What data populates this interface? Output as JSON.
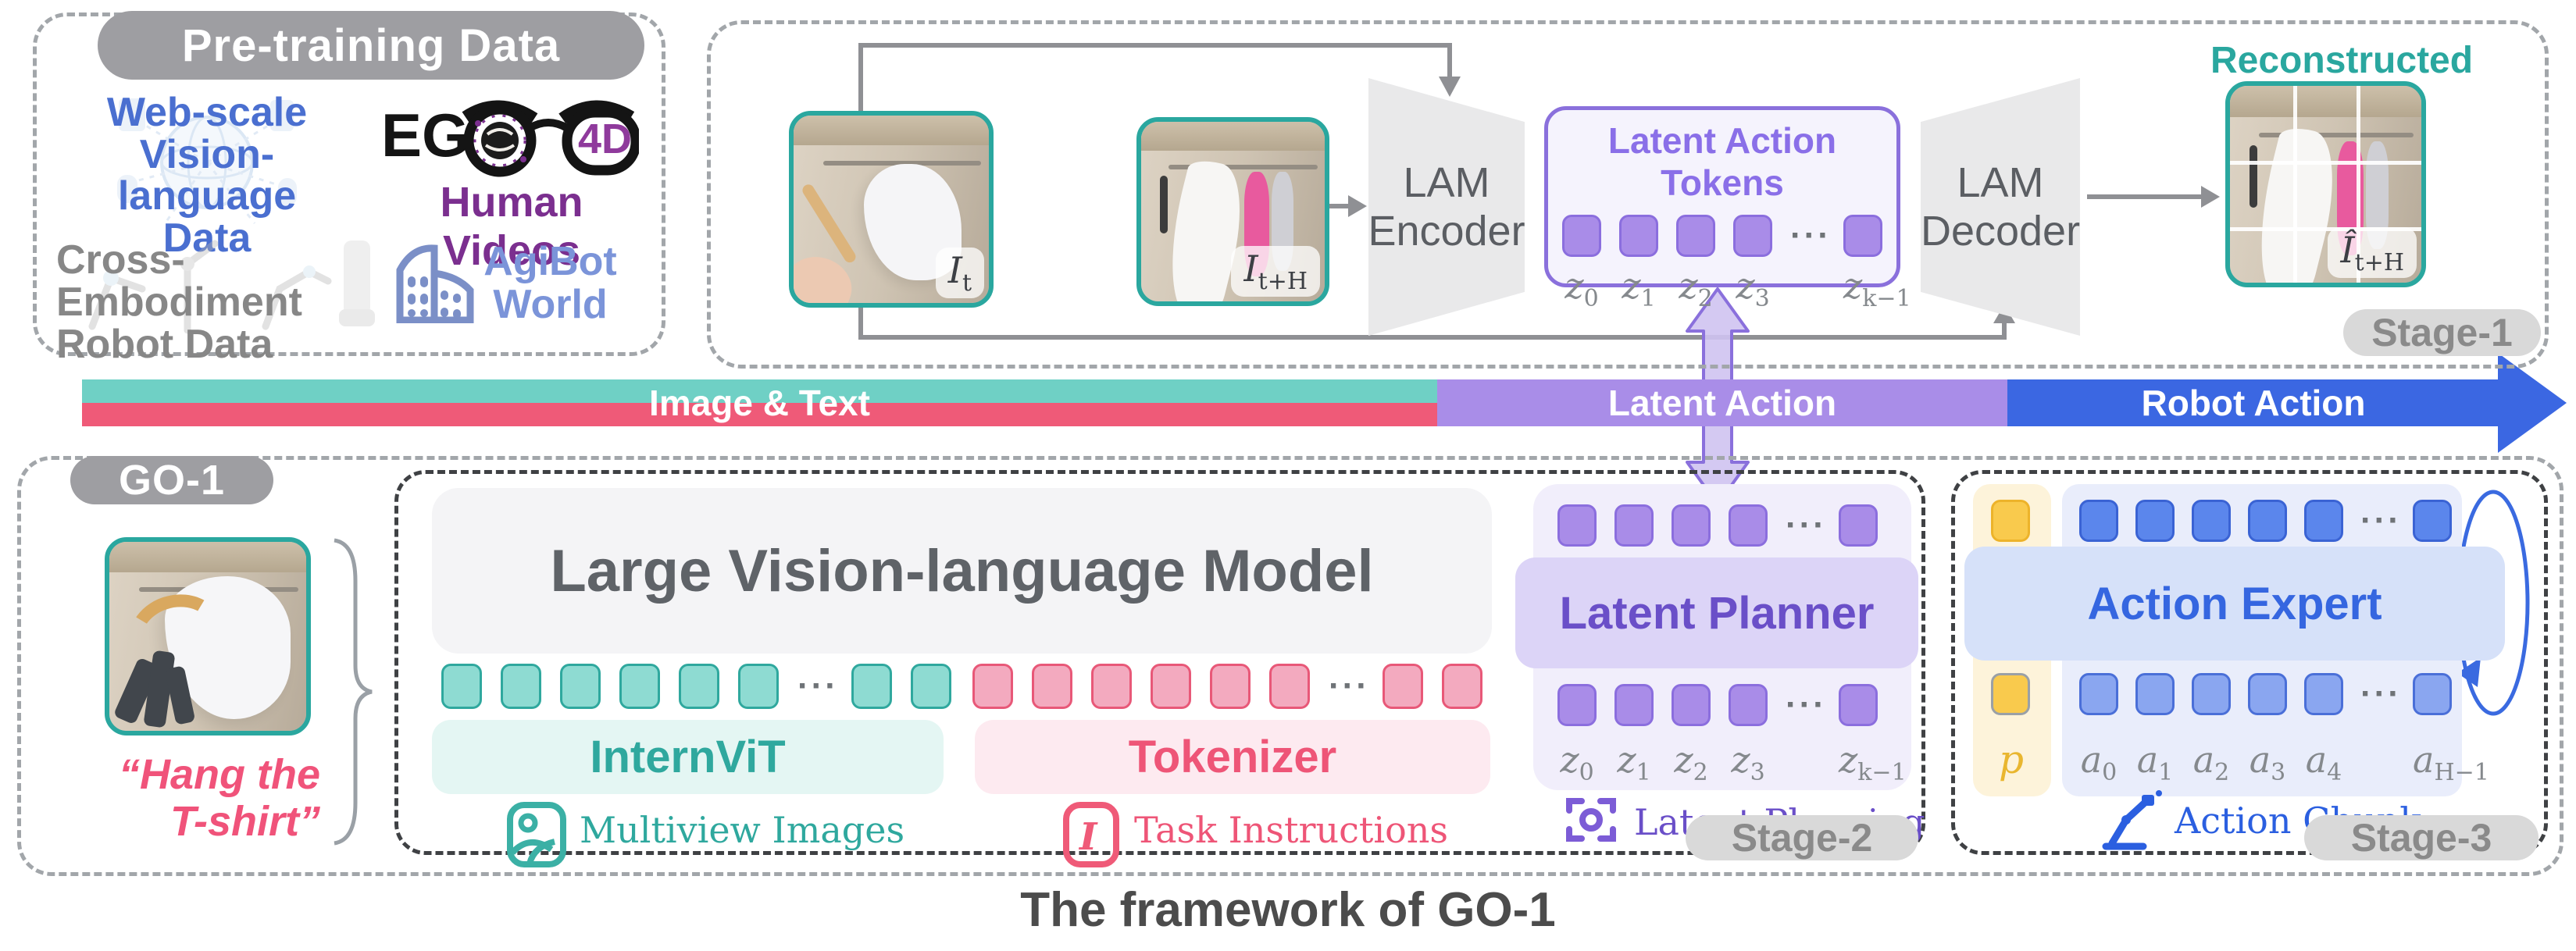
{
  "dots": "···",
  "caption": "The framework of GO-1",
  "pretraining": {
    "title": "Pre-training Data",
    "web_scale": [
      "Web-scale",
      "Vision-language",
      "Data"
    ],
    "ego_text": "EG",
    "ego_4d": "4D",
    "human_videos": "Human Videos",
    "cross_embodiment": [
      "Cross-Embodiment",
      "Robot Data"
    ],
    "agibot": [
      "AgiBot",
      "World"
    ]
  },
  "stage1": {
    "badge": "Stage-1",
    "encoder": [
      "LAM",
      "Encoder"
    ],
    "decoder": [
      "LAM",
      "Decoder"
    ],
    "tokens_title": "Latent Action Tokens",
    "latent_tokens": {
      "before": 4,
      "after": 1
    },
    "z_labels": [
      {
        "b": "z",
        "s": "0"
      },
      {
        "b": "z",
        "s": "1"
      },
      {
        "b": "z",
        "s": "2"
      },
      {
        "b": "z",
        "s": "3"
      },
      {
        "b": "z",
        "s": "k−1"
      }
    ],
    "img_t": {
      "b": "I",
      "s": "t"
    },
    "img_th": {
      "b": "I",
      "s": "t+H"
    },
    "recon_label": "Reconstructed",
    "img_recon": {
      "b": "Î",
      "s": "t+H"
    }
  },
  "bar": {
    "segments": [
      {
        "label": "Image & Text"
      },
      {
        "label": "Latent Action"
      },
      {
        "label": "Robot Action"
      }
    ]
  },
  "go1": {
    "badge": "GO-1",
    "instruction": [
      "“Hang the",
      "T-shirt”"
    ]
  },
  "stage2": {
    "badge": "Stage-2",
    "lvlm": "Large Vision-language Model",
    "internvit": "InternViT",
    "tokenizer": "Tokenizer",
    "multiview": "Multiview Images",
    "task_instructions": "Task Instructions",
    "instruction_icon_glyph": "I",
    "vision_tokens": {
      "before": 6,
      "after": 2
    },
    "text_tokens": {
      "before": 6,
      "after": 2
    },
    "planner": "Latent Planner",
    "planning": "Latent Planning",
    "planner_tokens_top": {
      "before": 4,
      "after": 1
    },
    "planner_tokens_bottom": {
      "before": 4,
      "after": 1
    },
    "z_labels": [
      {
        "b": "z",
        "s": "0"
      },
      {
        "b": "z",
        "s": "1"
      },
      {
        "b": "z",
        "s": "2"
      },
      {
        "b": "z",
        "s": "3"
      },
      {
        "b": "z",
        "s": "k−1"
      }
    ]
  },
  "stage3": {
    "badge": "Stage-3",
    "expert": "Action Expert",
    "chunk": "Action Chunk",
    "p_label": "p",
    "action_tokens_top": {
      "before": 5,
      "after": 1
    },
    "action_tokens_bottom": {
      "before": 5,
      "after": 1
    },
    "a_labels": [
      {
        "b": "a",
        "s": "0"
      },
      {
        "b": "a",
        "s": "1"
      },
      {
        "b": "a",
        "s": "2"
      },
      {
        "b": "a",
        "s": "3"
      },
      {
        "b": "a",
        "s": "4"
      },
      {
        "b": "a",
        "s": "H−1"
      }
    ]
  },
  "colors": {
    "teal": "#2AA79F",
    "teal_token": "#8EDBD2",
    "teal_bg": "#E4F6F3",
    "pink": "#EE5577",
    "pink_token": "#F3AABF",
    "pink_bg": "#FDEAF0",
    "purple_border": "#8A70DC",
    "purple_token": "#A98CE8",
    "purple_title": "#8A6FE8",
    "planner_text": "#6A4FC8",
    "planner_box": "#DCD4F7",
    "lavender_bg": "#F1EEFB",
    "blue": "#3B67E2",
    "blue_token": "#5B86EC",
    "blue_token_light": "#8AA6F0",
    "blue_box": "#D6E1F9",
    "blue_bg": "#E9EDFB",
    "yellow_token": "#F9CA4D",
    "yellow_bg": "#FDF3DA",
    "yellow_text": "#E9B62F",
    "bar_teal": "#6FD0C5",
    "bar_pink": "#EF5A78",
    "bar_purple": "#A98DE8",
    "badge_gray": "#9E9EA2",
    "stage_pill": "#D9D9D9",
    "web_blue": "#4A6FD0",
    "agibot_blue": "#7B94D9",
    "human_purple": "#7B2F8F",
    "gray_text": "#8A8A8A"
  }
}
